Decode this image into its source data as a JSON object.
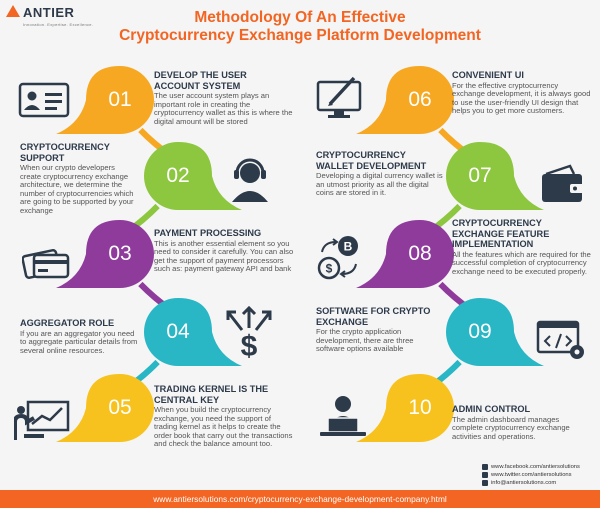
{
  "brand": {
    "name": "ANTIER",
    "tagline": "Innovation. Expertise. Excellence."
  },
  "title": {
    "line1": "Methodology Of An Effective",
    "line2": "Cryptocurrency  Exchange Platform Development"
  },
  "steps": [
    {
      "num": "01",
      "color": "#f7a823",
      "heading": "DEVELOP THE USER ACCOUNT SYSTEM",
      "text": "The user account system plays an important role in creating the cryptocurrency wallet as this is where the digital amount will be stored",
      "icon": "user-account-icon"
    },
    {
      "num": "02",
      "color": "#8dc63f",
      "heading": "CRYPTOCURRENCY SUPPORT",
      "text": "When our crypto developers create cryptocurrency exchange architecture, we determine the number of cryptocurrencies which are going to be supported by your exchange",
      "icon": "headset-support-icon"
    },
    {
      "num": "03",
      "color": "#8e3b9c",
      "heading": "PAYMENT PROCESSING",
      "text": "This is another essential element so you need to consider it carefully. You can also get the support of payment processors such as: payment gateway API and bank",
      "icon": "payment-cards-icon"
    },
    {
      "num": "04",
      "color": "#29b6c5",
      "heading": "AGGREGATOR ROLE",
      "text": "If you are an aggregator you need to aggregate particular details from several online resources.",
      "icon": "aggregator-dollar-icon"
    },
    {
      "num": "05",
      "color": "#f7c21e",
      "heading": "TRADING KERNEL IS THE CENTRAL KEY",
      "text": "When you build the cryptocurrency exchange, you need the support of trading kernel as it helps to create the order book that carry out the transactions and check the balance amount too.",
      "icon": "trading-chart-icon"
    },
    {
      "num": "06",
      "color": "#f7a823",
      "heading": "CONVENIENT UI",
      "text": "For the effective cryptocurrency exchange development, it is always good to use the user-friendly UI design that helps you to get more customers.",
      "icon": "design-monitor-icon"
    },
    {
      "num": "07",
      "color": "#8dc63f",
      "heading": "CRYPTOCURRENCY WALLET DEVELOPMENT",
      "text": "Developing a digital currency wallet is an utmost priority as all the digital coins are stored in it.",
      "icon": "wallet-icon"
    },
    {
      "num": "08",
      "color": "#8e3b9c",
      "heading": "CRYPTOCURRENCY EXCHANGE FEATURE IMPLEMENTATION",
      "text": "All the features which are required for the successful completion of cryptocurrency exchange need to be executed properly.",
      "icon": "currency-exchange-icon"
    },
    {
      "num": "09",
      "color": "#29b6c5",
      "heading": "SOFTWARE FOR CRYPTO EXCHANGE",
      "text": "For the crypto application development, there are three software options available",
      "icon": "code-settings-icon"
    },
    {
      "num": "10",
      "color": "#f7c21e",
      "heading": "ADMIN CONTROL",
      "text": "The admin dashboard manages complete cryptocurrency exchange activities and operations.",
      "icon": "admin-laptop-icon"
    }
  ],
  "social": {
    "facebook": "www.facebook.com/antiersolutions",
    "twitter": "www.twitter.com/antiersolutions",
    "email": "info@antiersolutions.com"
  },
  "footer": {
    "url": "www.antiersolutions.com/cryptocurrency-exchange-development-company.html"
  }
}
